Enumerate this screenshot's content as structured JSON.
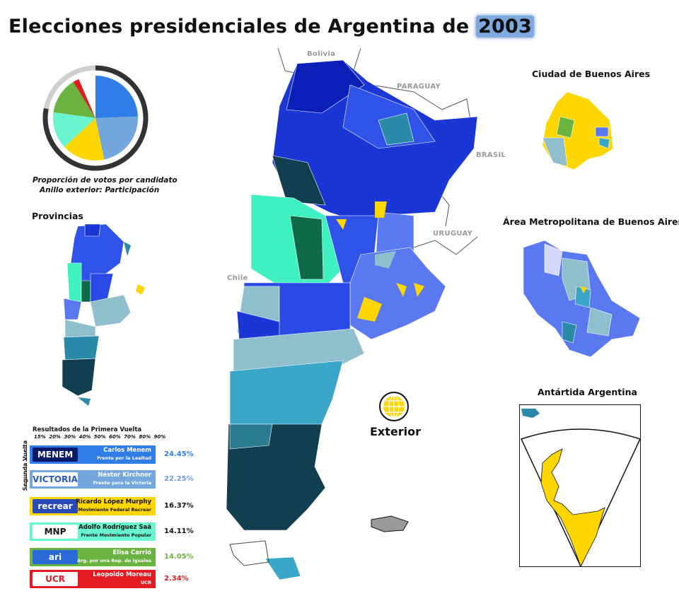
{
  "title": {
    "text": "Elecciones presidenciales de Argentina de ",
    "year": "2003"
  },
  "pie": {
    "caption_line1": "Proporción de votos por candidato",
    "caption_line2": "Anillo exterior: Participación",
    "slices": [
      {
        "candidate": "Carlos Menem",
        "share": 24.45,
        "color": "#2f7ee8"
      },
      {
        "candidate": "Néstor Kirchner",
        "share": 22.25,
        "color": "#74a8dc"
      },
      {
        "candidate": "Ricardo López Murphy",
        "share": 16.37,
        "color": "#ffd600"
      },
      {
        "candidate": "Adolfo Rodríguez Saá",
        "share": 14.11,
        "color": "#68f5d0"
      },
      {
        "candidate": "Elisa Carrió",
        "share": 14.05,
        "color": "#6ab33e"
      },
      {
        "candidate": "Leopoldo Moreau",
        "share": 2.34,
        "color": "#e31b23"
      },
      {
        "candidate": "Otros",
        "share": 6.43,
        "color": "#ffffff"
      }
    ],
    "turnout": 0.78
  },
  "sections": {
    "provincias": "Provincias",
    "caba": "Ciudad de Buenos Aires",
    "amba": "Área Metropolitana de Buenos Aires",
    "antartida": "Antártida Argentina",
    "exterior": "Exterior"
  },
  "countries": [
    "Bolivia",
    "PARAGUAY",
    "BRASIL",
    "URUGUAY",
    "Chile"
  ],
  "results": {
    "title": "Resultados de la Primera Vuelta",
    "scale": "15% 20% 30% 40% 50% 60% 70% 80% 90%",
    "ballotage_label": "Segunda Vuelta",
    "candidates": [
      {
        "logo": "MENEM",
        "name": "Carlos Menem",
        "party": "Frente por la Lealtad",
        "pct": "24.45%",
        "color": "#2f7ee8",
        "pct_color": "#2f7ee8"
      },
      {
        "logo": "VICTORIA",
        "name": "Néstor Kirchner",
        "party": "Frente para la Victoria",
        "pct": "22.25%",
        "color": "#74a8dc",
        "pct_color": "#6b9fd6"
      },
      {
        "logo": "recrear",
        "name": "Ricardo López Murphy",
        "party": "Movimiento Federal Recrear",
        "pct": "16.37%",
        "color": "#ffd600",
        "pct_color": "#111111"
      },
      {
        "logo": "MNP",
        "name": "Adolfo Rodríguez Saá",
        "party": "Frente Movimiento Popular",
        "pct": "14.11%",
        "color": "#68f5d0",
        "pct_color": "#111111"
      },
      {
        "logo": "ari",
        "name": "Elisa Carrió",
        "party": "Arg. por una Rep. de Iguales",
        "pct": "14.05%",
        "color": "#6ab33e",
        "pct_color": "#6ab33e"
      },
      {
        "logo": "UCR",
        "name": "Leopoldo Moreau",
        "party": "UCR",
        "pct": "2.34%",
        "color": "#e31b23",
        "pct_color": "#e31b23"
      }
    ]
  },
  "colors": {
    "menem_strong": "#0a1fb8",
    "menem": "#2f52e8",
    "menem_light": "#5a78f0",
    "kirchner_dark": "#123f50",
    "kirchner": "#2a8aa8",
    "kirchner_light": "#8fbfcc",
    "murphy": "#ffd600",
    "saa": "#3ff0c0",
    "saa_dark": "#0f6a48",
    "carrio": "#6ab33e"
  }
}
